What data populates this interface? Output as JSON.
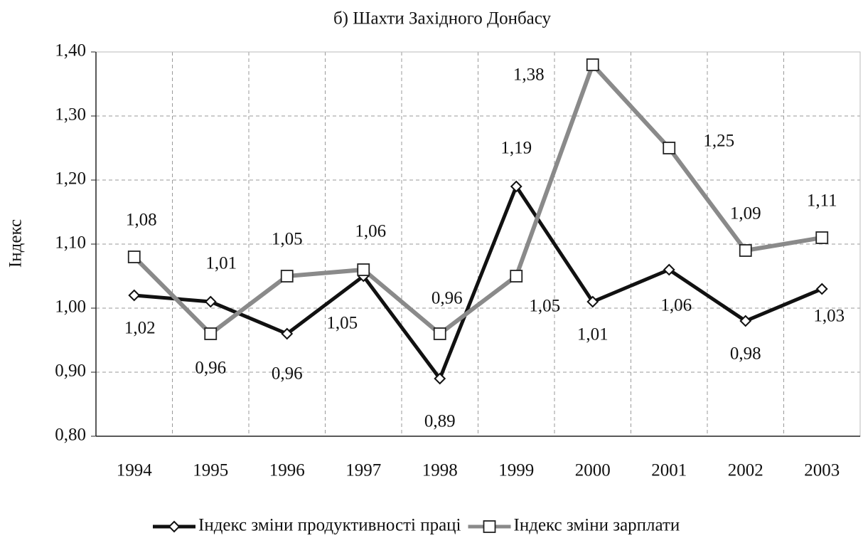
{
  "chart_data": {
    "type": "line",
    "title": "б) Шахти Західного Донбасу",
    "ylabel": "Індекс",
    "categories": [
      "1994",
      "1995",
      "1996",
      "1997",
      "1998",
      "1999",
      "2000",
      "2001",
      "2002",
      "2003"
    ],
    "series": [
      {
        "name": "Індекс зміни продуктивності праці",
        "color": "#111111",
        "marker": "diamond",
        "values": [
          1.02,
          1.01,
          0.96,
          1.05,
          0.89,
          1.19,
          1.01,
          1.06,
          0.98,
          1.03
        ],
        "value_labels": [
          "1,02",
          "1,01",
          "0,96",
          "1,05",
          "0,89",
          "1,19",
          "1,01",
          "1,06",
          "0,98",
          "1,03"
        ]
      },
      {
        "name": "Індекс зміни зарплати",
        "color": "#8a8a8a",
        "marker": "square",
        "values": [
          1.08,
          0.96,
          1.05,
          1.06,
          0.96,
          1.05,
          1.38,
          1.25,
          1.09,
          1.11
        ],
        "value_labels": [
          "1,08",
          "0,96",
          "1,05",
          "1,06",
          "0,96",
          "1,05",
          "1,38",
          "1,25",
          "1,09",
          "1,11"
        ]
      }
    ],
    "ylim": [
      0.8,
      1.4
    ],
    "yticks": [
      {
        "value": 0.8,
        "label": "0,80"
      },
      {
        "value": 0.9,
        "label": "0,90"
      },
      {
        "value": 1.0,
        "label": "1,00"
      },
      {
        "value": 1.1,
        "label": "1,10"
      },
      {
        "value": 1.2,
        "label": "1,20"
      },
      {
        "value": 1.3,
        "label": "1,30"
      },
      {
        "value": 1.4,
        "label": "1,40"
      }
    ],
    "grid": true,
    "legend": "bottom"
  }
}
